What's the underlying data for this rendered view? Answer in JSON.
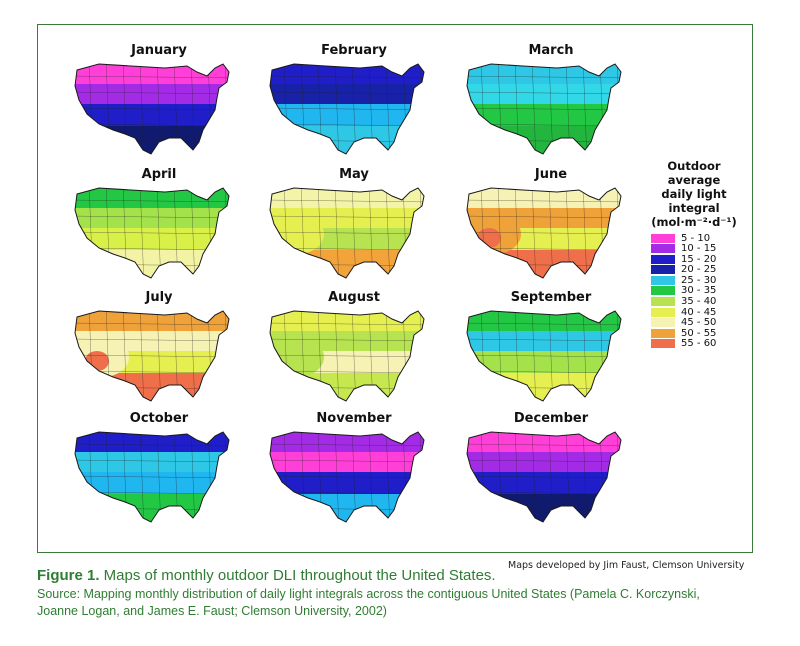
{
  "months": [
    {
      "name": "January",
      "colors": [
        "#ff3fd8",
        "#a42be6",
        "#1f1ec8",
        "#101a6e"
      ]
    },
    {
      "name": "February",
      "colors": [
        "#1f1ec8",
        "#1722a8",
        "#20b6f0",
        "#2ec8e6"
      ]
    },
    {
      "name": "March",
      "colors": [
        "#2ec8e6",
        "#32d7e8",
        "#22c744",
        "#22b63e"
      ]
    },
    {
      "name": "April",
      "colors": [
        "#22c744",
        "#a4e24c",
        "#d8f048",
        "#f3f3a6"
      ]
    },
    {
      "name": "May",
      "colors": [
        "#f4f4a8",
        "#e6ef50",
        "#b8e350",
        "#f2a43a"
      ]
    },
    {
      "name": "June",
      "colors": [
        "#f6f2b4",
        "#f0a23a",
        "#e6ef50",
        "#ee6f4a"
      ]
    },
    {
      "name": "July",
      "colors": [
        "#f0a23a",
        "#f6f2b4",
        "#e6ef50",
        "#ee6f4a"
      ]
    },
    {
      "name": "August",
      "colors": [
        "#e6ef50",
        "#b8e350",
        "#f6f2b4",
        "#c6e84e"
      ]
    },
    {
      "name": "September",
      "colors": [
        "#22c744",
        "#2ec8e6",
        "#a4e24c",
        "#e6ef50"
      ]
    },
    {
      "name": "October",
      "colors": [
        "#1f1ec8",
        "#2ec8e6",
        "#20b6f0",
        "#22c744"
      ]
    },
    {
      "name": "November",
      "colors": [
        "#a42be6",
        "#ff3fd8",
        "#1f1ec8",
        "#20b6f0"
      ]
    },
    {
      "name": "December",
      "colors": [
        "#ff3fd8",
        "#a42be6",
        "#1f1ec8",
        "#101a6e"
      ]
    }
  ],
  "legend": {
    "title_lines": [
      "Outdoor",
      "average",
      "daily light",
      "integral",
      "(mol·m⁻²·d⁻¹)"
    ],
    "items": [
      {
        "label": "5 - 10",
        "color": "#ff3fd8"
      },
      {
        "label": "10 - 15",
        "color": "#a42be6"
      },
      {
        "label": "15 - 20",
        "color": "#1f1ec8"
      },
      {
        "label": "20 - 25",
        "color": "#1722a8"
      },
      {
        "label": "25 - 30",
        "color": "#2ec8e6"
      },
      {
        "label": "30 - 35",
        "color": "#22c744"
      },
      {
        "label": "35 - 40",
        "color": "#b8e350"
      },
      {
        "label": "40 - 45",
        "color": "#e6ef50"
      },
      {
        "label": "45 - 50",
        "color": "#f6f2b4"
      },
      {
        "label": "50 - 55",
        "color": "#f0a23a"
      },
      {
        "label": "55 - 60",
        "color": "#ee6f4a"
      }
    ]
  },
  "credit": "Maps developed by Jim Faust, Clemson University",
  "caption": {
    "label": "Figure 1.",
    "text": " Maps of monthly outdoor DLI throughout the United States.",
    "source_line1": "Source: Mapping monthly distribution of daily light integrals across the contiguous United States (Pamela C. Korczynski,",
    "source_line2": "Joanne Logan, and James E. Faust; Clemson University, 2002)"
  }
}
